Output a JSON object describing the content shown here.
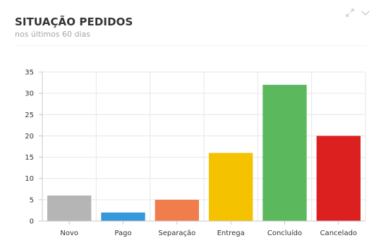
{
  "widget": {
    "title": "SITUAÇÃO PEDIDOS",
    "subtitle": "nos últimos 60 dias",
    "controls": [
      {
        "icon": "expand-icon",
        "color": "#c9c9c9"
      },
      {
        "icon": "chevron-down-icon",
        "color": "#c9c9c9"
      }
    ]
  },
  "chart_data": {
    "type": "bar",
    "categories": [
      "Novo",
      "Pago",
      "Separação",
      "Entrega",
      "Concluído",
      "Cancelado"
    ],
    "values": [
      6,
      2,
      5,
      16,
      32,
      20
    ],
    "colors": [
      "#b5b5b5",
      "#3498db",
      "#f07d4c",
      "#f5c200",
      "#5cb85c",
      "#dc1f1f"
    ],
    "title": "",
    "xlabel": "",
    "ylabel": "",
    "ylim": [
      0,
      35
    ],
    "yticks": [
      0,
      5,
      10,
      15,
      20,
      25,
      30,
      35
    ],
    "grid": true,
    "legend": "none"
  }
}
